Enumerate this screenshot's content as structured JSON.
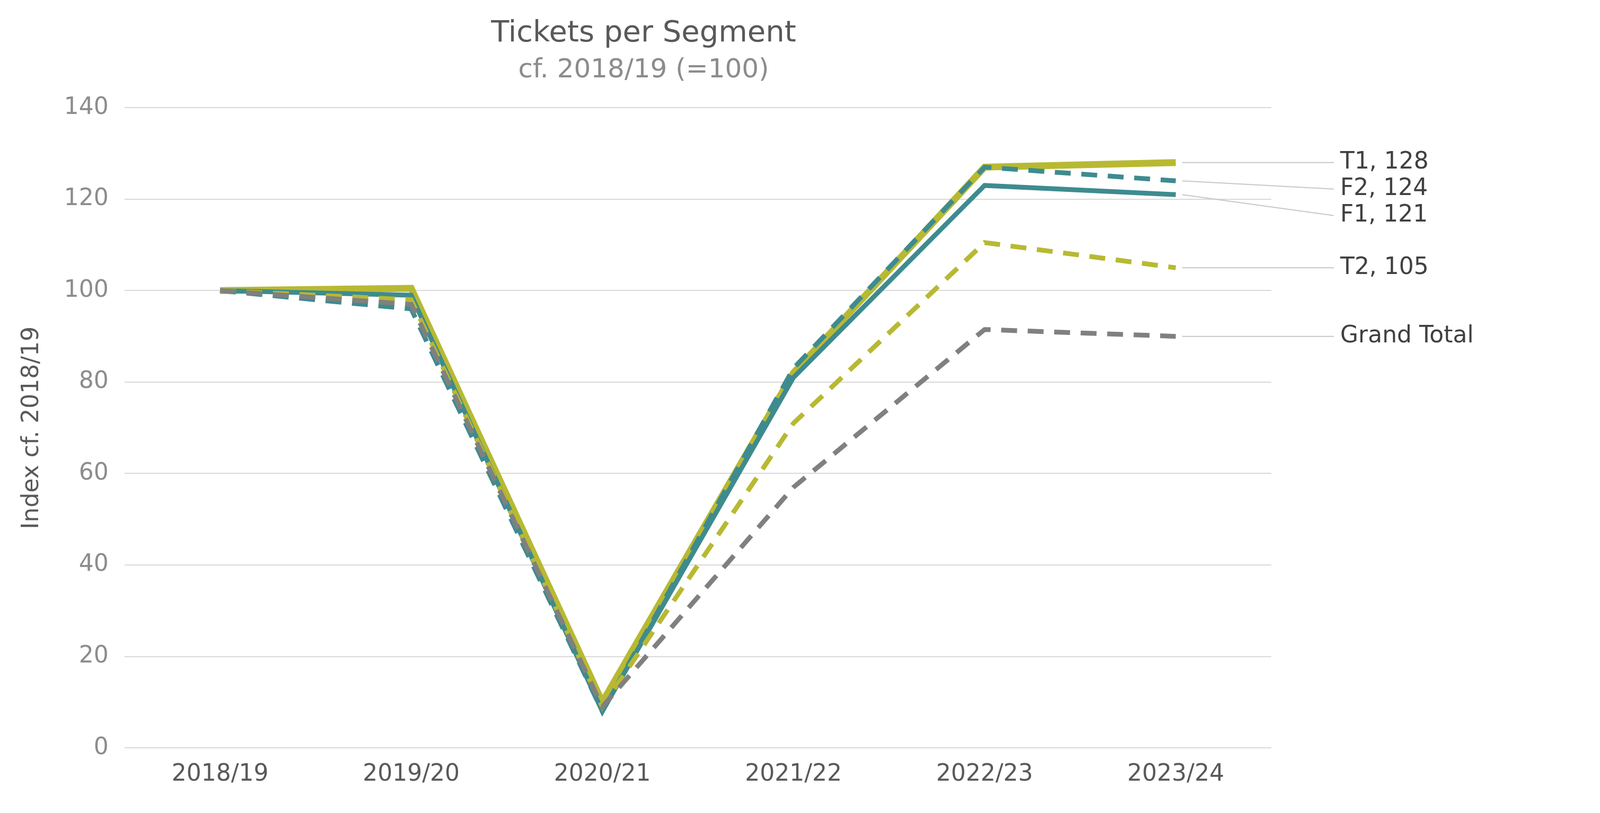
{
  "chart_data": {
    "type": "line",
    "title": "Tickets per Segment",
    "subtitle": "cf. 2018/19 (=100)",
    "y_label": "Index cf. 2018/19",
    "categories": [
      "2018/19",
      "2019/20",
      "2020/21",
      "2021/22",
      "2022/23",
      "2023/24"
    ],
    "series": [
      {
        "name": "Grand Total",
        "color": "#808080",
        "line_style": "dashed",
        "values": [
          100,
          97,
          9,
          57,
          91.5,
          90
        ]
      },
      {
        "name": "T2",
        "color": "#b8b932",
        "line_style": "dashed",
        "values": [
          100,
          98,
          9,
          71,
          110.5,
          105
        ]
      },
      {
        "name": "F1",
        "color": "#3e8b8f",
        "line_style": "solid",
        "values": [
          100,
          99,
          8,
          81,
          123,
          121
        ]
      },
      {
        "name": "F2",
        "color": "#3e8b8f",
        "line_style": "dashed",
        "values": [
          100,
          96,
          8,
          83,
          127,
          124
        ]
      },
      {
        "name": "T1",
        "color": "#b8b932",
        "line_style": "solid",
        "values": [
          100,
          100.5,
          10,
          82,
          127,
          128
        ]
      }
    ],
    "annotations": [
      {
        "series": "T1",
        "text": "T1, 128"
      },
      {
        "series": "F2",
        "text": "F2, 124"
      },
      {
        "series": "F1",
        "text": "F1, 121"
      },
      {
        "series": "T2",
        "text": "T2, 105"
      },
      {
        "series": "Grand Total",
        "text": "Grand Total"
      }
    ],
    "ylim": [
      0,
      140
    ],
    "yticks": [
      0,
      20,
      40,
      60,
      80,
      100,
      120,
      140
    ],
    "grid": true
  }
}
